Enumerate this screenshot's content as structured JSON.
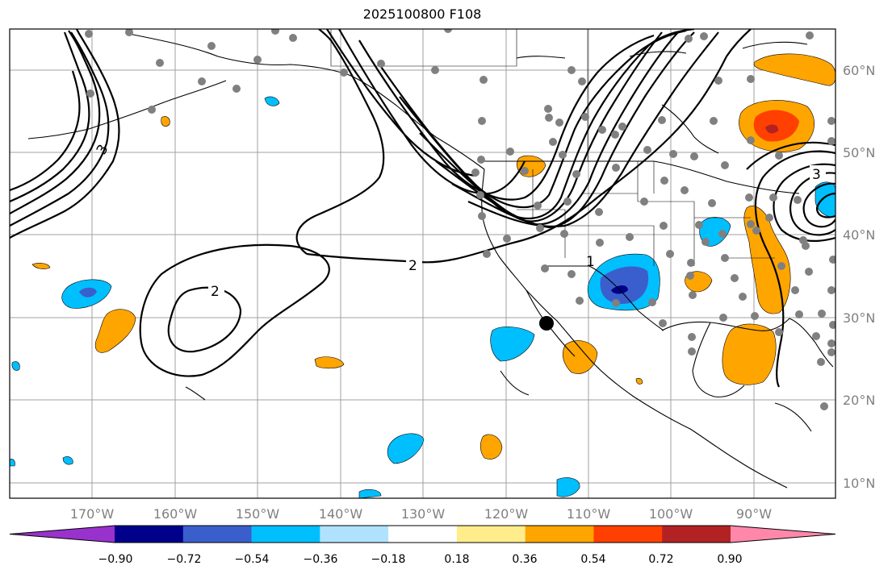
{
  "title": "2025100800 F108",
  "lat_labels": [
    "60°N",
    "50°N",
    "40°N",
    "30°N",
    "20°N",
    "10°N"
  ],
  "lon_labels": [
    "170°W",
    "160°W",
    "150°W",
    "140°W",
    "130°W",
    "120°W",
    "110°W",
    "100°W",
    "90°W"
  ],
  "contour_labels": [
    "2",
    "2",
    "1",
    "3",
    "3"
  ],
  "colorbar": {
    "ticks": [
      "−0.90",
      "−0.72",
      "−0.54",
      "−0.36",
      "−0.18",
      "0.18",
      "0.36",
      "0.54",
      "0.72",
      "0.90"
    ],
    "colors": [
      "#9932cc",
      "#00008b",
      "#3a5fcd",
      "#00bfff",
      "#b0e2ff",
      "#ffffff",
      "#ffec8b",
      "#ffa500",
      "#ff4000",
      "#b22222",
      "#ff88aa"
    ]
  },
  "colors": {
    "station_dot": "#808080",
    "contour": "#000000",
    "grid": "#a0a0a0"
  }
}
